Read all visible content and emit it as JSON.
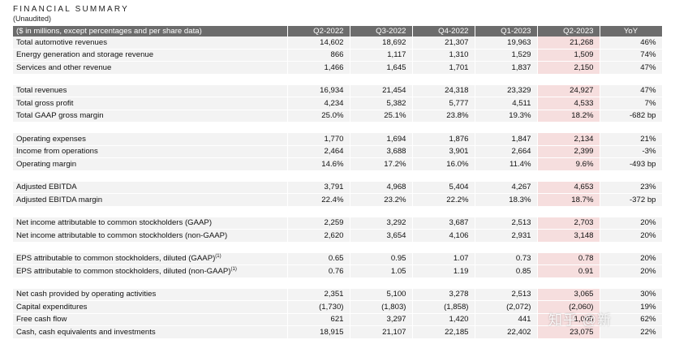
{
  "header": {
    "title": "FINANCIAL SUMMARY",
    "subtitle": "(Unaudited)"
  },
  "table": {
    "columns": [
      "($ in millions, except percentages and per share data)",
      "Q2-2022",
      "Q3-2022",
      "Q4-2022",
      "Q1-2023",
      "Q2-2023",
      "YoY"
    ],
    "groups": [
      [
        {
          "label": "Total automotive revenues",
          "values": [
            "14,602",
            "18,692",
            "21,307",
            "19,963",
            "21,268",
            "46%"
          ]
        },
        {
          "label": "Energy generation and storage revenue",
          "values": [
            "866",
            "1,117",
            "1,310",
            "1,529",
            "1,509",
            "74%"
          ]
        },
        {
          "label": "Services and other revenue",
          "values": [
            "1,466",
            "1,645",
            "1,701",
            "1,837",
            "2,150",
            "47%"
          ]
        }
      ],
      [
        {
          "label": "Total revenues",
          "values": [
            "16,934",
            "21,454",
            "24,318",
            "23,329",
            "24,927",
            "47%"
          ]
        },
        {
          "label": "Total gross profit",
          "values": [
            "4,234",
            "5,382",
            "5,777",
            "4,511",
            "4,533",
            "7%"
          ]
        },
        {
          "label": "Total GAAP gross margin",
          "values": [
            "25.0%",
            "25.1%",
            "23.8%",
            "19.3%",
            "18.2%",
            "-682 bp"
          ]
        }
      ],
      [
        {
          "label": "Operating expenses",
          "values": [
            "1,770",
            "1,694",
            "1,876",
            "1,847",
            "2,134",
            "21%"
          ]
        },
        {
          "label": "Income from operations",
          "values": [
            "2,464",
            "3,688",
            "3,901",
            "2,664",
            "2,399",
            "-3%"
          ]
        },
        {
          "label": "Operating margin",
          "values": [
            "14.6%",
            "17.2%",
            "16.0%",
            "11.4%",
            "9.6%",
            "-493 bp"
          ]
        }
      ],
      [
        {
          "label": "Adjusted EBITDA",
          "values": [
            "3,791",
            "4,968",
            "5,404",
            "4,267",
            "4,653",
            "23%"
          ]
        },
        {
          "label": "Adjusted EBITDA margin",
          "values": [
            "22.4%",
            "23.2%",
            "22.2%",
            "18.3%",
            "18.7%",
            "-372 bp"
          ]
        }
      ],
      [
        {
          "label": "Net income attributable to common stockholders (GAAP)",
          "values": [
            "2,259",
            "3,292",
            "3,687",
            "2,513",
            "2,703",
            "20%"
          ]
        },
        {
          "label": "Net income attributable to common stockholders (non-GAAP)",
          "values": [
            "2,620",
            "3,654",
            "4,106",
            "2,931",
            "3,148",
            "20%"
          ]
        }
      ],
      [
        {
          "label": "EPS attributable to common stockholders, diluted (GAAP)",
          "sup": "(1)",
          "values": [
            "0.65",
            "0.95",
            "1.07",
            "0.73",
            "0.78",
            "20%"
          ]
        },
        {
          "label": "EPS attributable to common stockholders, diluted (non-GAAP)",
          "sup": "(1)",
          "values": [
            "0.76",
            "1.05",
            "1.19",
            "0.85",
            "0.91",
            "20%"
          ]
        }
      ],
      [
        {
          "label": "Net cash provided by operating activities",
          "values": [
            "2,351",
            "5,100",
            "3,278",
            "2,513",
            "3,065",
            "30%"
          ]
        },
        {
          "label": "Capital expenditures",
          "values": [
            "(1,730)",
            "(1,803)",
            "(1,858)",
            "(2,072)",
            "(2,060)",
            "19%"
          ]
        },
        {
          "label": "Free cash flow",
          "values": [
            "621",
            "3,297",
            "1,420",
            "441",
            "1,005",
            "62%"
          ]
        },
        {
          "label": "Cash, cash equivalents and investments",
          "values": [
            "18,915",
            "21,107",
            "22,185",
            "22,402",
            "23,075",
            "22%"
          ]
        }
      ]
    ]
  },
  "watermark": "知乎 @新",
  "colors": {
    "header_bg": "#6c6c6c",
    "row_bg": "#f3f3f3",
    "highlight_bg": "#f6dede"
  }
}
